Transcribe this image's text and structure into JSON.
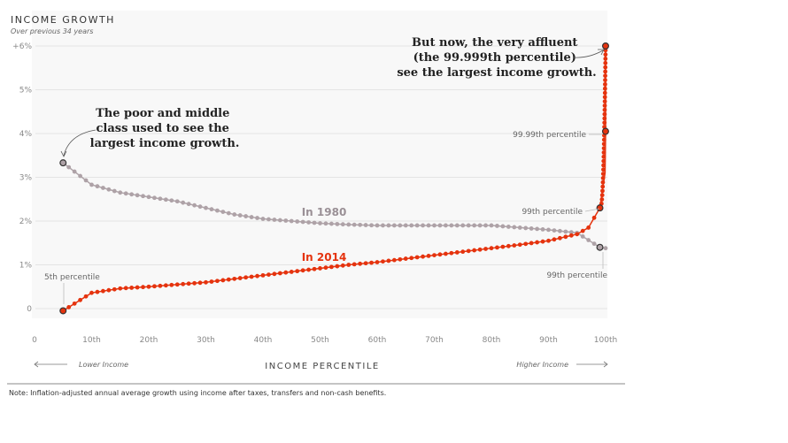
{
  "chart_data": {
    "type": "line",
    "title": "INCOME GROWTH",
    "subtitle": "Over previous 34 years",
    "xlabel": "INCOME PERCENTILE",
    "xlim": [
      0,
      100
    ],
    "ylim": [
      0,
      6
    ],
    "y_ticks": [
      "0",
      "1%",
      "2%",
      "3%",
      "4%",
      "5%",
      "+6%"
    ],
    "x_ticks": [
      "0",
      "10th",
      "20th",
      "30th",
      "40th",
      "50th",
      "60th",
      "70th",
      "80th",
      "90th",
      "100th"
    ],
    "lower_label": "Lower Income",
    "higher_label": "Higher Income",
    "grid": true,
    "series": [
      {
        "name": "In 1980",
        "color": "#aea2a7",
        "x": [
          5,
          10,
          15,
          20,
          25,
          30,
          35,
          40,
          45,
          50,
          55,
          60,
          65,
          70,
          75,
          80,
          85,
          90,
          95,
          99,
          100
        ],
        "y": [
          3.33,
          2.83,
          2.65,
          2.55,
          2.45,
          2.3,
          2.15,
          2.05,
          2.0,
          1.95,
          1.92,
          1.9,
          1.9,
          1.9,
          1.9,
          1.9,
          1.85,
          1.8,
          1.73,
          1.4,
          1.38
        ]
      },
      {
        "name": "In 2014",
        "color": "#e5330e",
        "x": [
          5,
          10,
          15,
          20,
          25,
          30,
          35,
          40,
          45,
          50,
          55,
          60,
          65,
          70,
          75,
          80,
          85,
          90,
          95,
          97,
          99,
          99.9,
          99.99,
          99.999
        ],
        "y": [
          -0.05,
          0.36,
          0.46,
          0.5,
          0.55,
          0.6,
          0.68,
          0.76,
          0.84,
          0.92,
          1.0,
          1.06,
          1.14,
          1.22,
          1.3,
          1.38,
          1.46,
          1.55,
          1.7,
          1.85,
          2.3,
          3.1,
          4.05,
          6.0
        ]
      }
    ],
    "point_labels": {
      "p5": "5th percentile",
      "p99_1980": "99th percentile",
      "p99_2014": "99th percentile",
      "p9999": "99.99th percentile"
    },
    "annotations": {
      "poor_middle": [
        "The poor and middle",
        "class used to see the",
        "largest income growth."
      ],
      "affluent": [
        "But now, the very affluent",
        "(the 99.999th percentile)",
        "see the largest income growth."
      ]
    },
    "note": "Note: Inflation-adjusted annual average growth using income after taxes, transfers and non-cash benefits."
  },
  "colors": {
    "panel": "#f8f8f8",
    "grid": "#dedede",
    "dot_stroke": "#333333"
  }
}
